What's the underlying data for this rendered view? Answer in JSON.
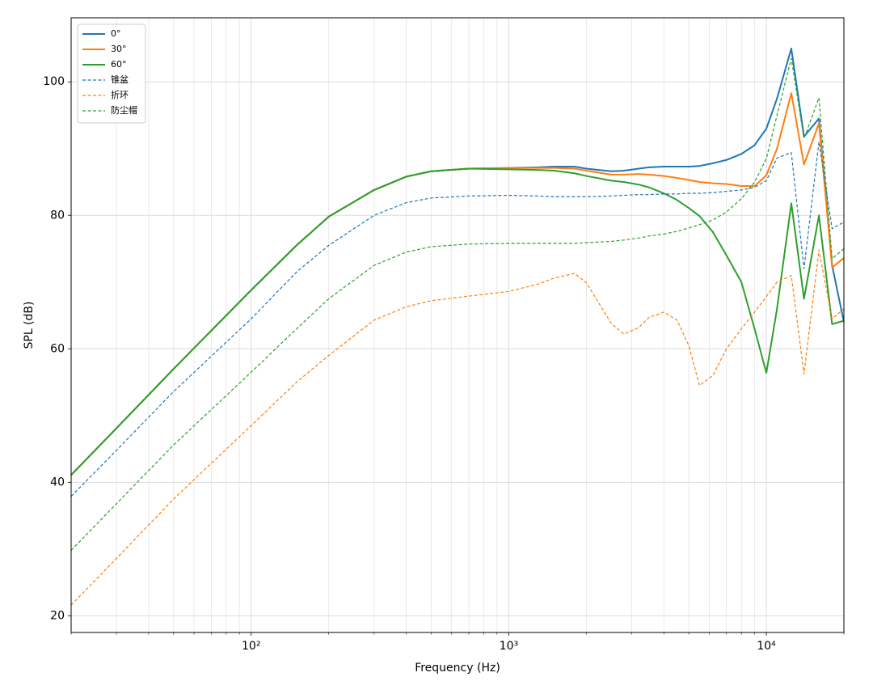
{
  "chart_data": {
    "type": "line",
    "xlabel": "Frequency (Hz)",
    "ylabel": "SPL (dB)",
    "xscale": "log",
    "grid": true,
    "legend": "upper left",
    "xlim": [
      20,
      20000
    ],
    "ylim": [
      17.5,
      109.6
    ],
    "xticks": [
      {
        "value": 100,
        "label": "10²"
      },
      {
        "value": 1000,
        "label": "10³"
      },
      {
        "value": 10000,
        "label": "10⁴"
      }
    ],
    "xminorticks": [
      20,
      30,
      40,
      50,
      60,
      70,
      80,
      90,
      200,
      300,
      400,
      500,
      600,
      700,
      800,
      900,
      2000,
      3000,
      4000,
      5000,
      6000,
      7000,
      8000,
      9000,
      20000
    ],
    "yticks": [
      20,
      40,
      60,
      80,
      100
    ],
    "x": [
      20,
      30,
      50,
      100,
      150,
      200,
      300,
      400,
      500,
      700,
      1000,
      1300,
      1500,
      1800,
      2000,
      2500,
      2800,
      3200,
      3500,
      4000,
      4500,
      5000,
      5500,
      6200,
      7000,
      8000,
      9000,
      10000,
      11000,
      12500,
      14000,
      16000,
      18000,
      20000
    ],
    "series": [
      {
        "name": "0°",
        "color": "#1f77b4",
        "linestyle": "solid",
        "values": [
          41.1,
          48.1,
          57,
          68.8,
          75.5,
          79.8,
          83.8,
          85.8,
          86.6,
          87,
          87.1,
          87.2,
          87.3,
          87.3,
          87,
          86.6,
          86.7,
          87,
          87.2,
          87.3,
          87.3,
          87.3,
          87.4,
          87.8,
          88.3,
          89.2,
          90.5,
          93,
          97.5,
          105,
          91.8,
          94.5,
          72.5,
          64
        ]
      },
      {
        "name": "30°",
        "color": "#ff7f0e",
        "linestyle": "solid",
        "values": [
          41.1,
          48.1,
          57,
          68.8,
          75.5,
          79.8,
          83.8,
          85.8,
          86.6,
          87,
          87.1,
          87.1,
          87.1,
          87,
          86.7,
          86.1,
          86.1,
          86.2,
          86.1,
          85.9,
          85.6,
          85.3,
          85,
          84.8,
          84.7,
          84.4,
          84.4,
          86,
          90,
          98.3,
          87.6,
          93.8,
          72.2,
          73.6
        ]
      },
      {
        "name": "60°",
        "color": "#2ca02c",
        "linestyle": "solid",
        "values": [
          41.1,
          48.1,
          57,
          68.8,
          75.5,
          79.8,
          83.8,
          85.8,
          86.6,
          87,
          86.9,
          86.8,
          86.7,
          86.3,
          85.9,
          85.2,
          85,
          84.6,
          84.2,
          83.3,
          82.3,
          81.1,
          79.9,
          77.5,
          74,
          70,
          63,
          56.4,
          66,
          81.8,
          67.5,
          80,
          63.7,
          64.2
        ]
      },
      {
        "name": "锥盆",
        "color": "#1f77b4",
        "linestyle": "dashed",
        "values": [
          37.9,
          44.8,
          53.6,
          64.5,
          71.5,
          75.5,
          80,
          81.9,
          82.6,
          82.9,
          83,
          82.9,
          82.8,
          82.8,
          82.8,
          82.9,
          83,
          83.1,
          83.1,
          83.2,
          83.2,
          83.3,
          83.3,
          83.4,
          83.6,
          83.8,
          84.2,
          85.2,
          88.6,
          89.4,
          72,
          91,
          78,
          79
        ]
      },
      {
        "name": "折环",
        "color": "#ff7f0e",
        "linestyle": "dashed",
        "values": [
          21.6,
          28.6,
          37.5,
          48.5,
          55,
          59,
          64.3,
          66.3,
          67.2,
          67.9,
          68.6,
          69.7,
          70.6,
          71.3,
          69.9,
          63.8,
          62.2,
          63.2,
          64.7,
          65.5,
          64.3,
          60.5,
          54.5,
          56,
          60,
          63,
          65.5,
          67.8,
          70,
          71,
          56.2,
          74.8,
          64.5,
          66
        ]
      },
      {
        "name": "防尘帽",
        "color": "#2ca02c",
        "linestyle": "dashed",
        "values": [
          29.8,
          36.8,
          45.6,
          56.5,
          63,
          67.5,
          72.5,
          74.5,
          75.3,
          75.7,
          75.8,
          75.8,
          75.8,
          75.8,
          75.9,
          76.1,
          76.3,
          76.6,
          76.9,
          77.2,
          77.6,
          78.1,
          78.6,
          79.3,
          80.5,
          82.5,
          85,
          88.5,
          95,
          103.5,
          91.5,
          97.6,
          73.5,
          75
        ]
      }
    ]
  }
}
